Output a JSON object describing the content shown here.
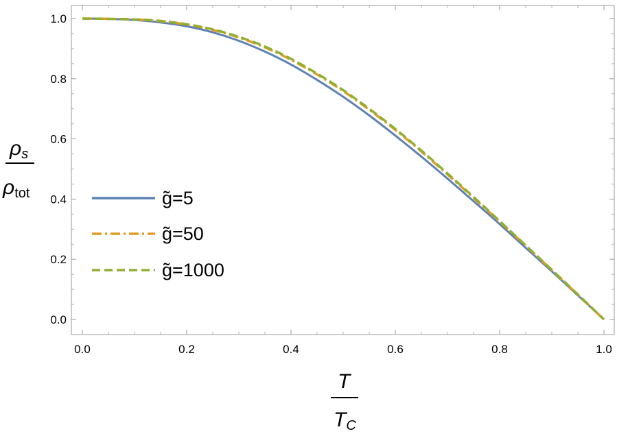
{
  "chart_data": {
    "type": "line",
    "xlabel": {
      "numerator": "T",
      "denominator_base": "T",
      "denominator_sub": "C"
    },
    "ylabel": {
      "numerator_base": "ρ",
      "numerator_sub": "s",
      "denominator_base": "ρ",
      "denominator_sub": "tot"
    },
    "xlim": [
      0.0,
      1.0
    ],
    "ylim": [
      0.0,
      1.0
    ],
    "xticks": [
      "0.0",
      "0.2",
      "0.4",
      "0.6",
      "0.8",
      "1.0"
    ],
    "yticks": [
      "0.0",
      "0.2",
      "0.4",
      "0.6",
      "0.8",
      "1.0"
    ],
    "grid": false,
    "legend_position": "left-middle",
    "x": [
      0.0,
      0.05,
      0.1,
      0.15,
      0.2,
      0.25,
      0.3,
      0.35,
      0.4,
      0.45,
      0.5,
      0.55,
      0.6,
      0.65,
      0.7,
      0.75,
      0.8,
      0.85,
      0.9,
      0.95,
      1.0
    ],
    "series": [
      {
        "name": "g̃=5",
        "style": "solid",
        "color": "#5e81b5",
        "values": [
          1.0,
          0.999,
          0.995,
          0.987,
          0.974,
          0.954,
          0.926,
          0.89,
          0.847,
          0.796,
          0.74,
          0.678,
          0.611,
          0.541,
          0.468,
          0.393,
          0.317,
          0.238,
          0.16,
          0.08,
          0.0
        ]
      },
      {
        "name": "g̃=50",
        "style": "dashdot",
        "color": "#e19c24",
        "values": [
          1.0,
          0.999,
          0.997,
          0.991,
          0.98,
          0.962,
          0.937,
          0.904,
          0.863,
          0.814,
          0.759,
          0.697,
          0.63,
          0.558,
          0.482,
          0.404,
          0.325,
          0.245,
          0.164,
          0.082,
          0.0
        ]
      },
      {
        "name": "g̃=1000",
        "style": "dashed",
        "color": "#8fb032",
        "values": [
          1.0,
          0.999,
          0.997,
          0.992,
          0.981,
          0.964,
          0.939,
          0.907,
          0.866,
          0.817,
          0.762,
          0.7,
          0.633,
          0.561,
          0.485,
          0.407,
          0.327,
          0.246,
          0.165,
          0.083,
          0.0
        ]
      }
    ]
  }
}
